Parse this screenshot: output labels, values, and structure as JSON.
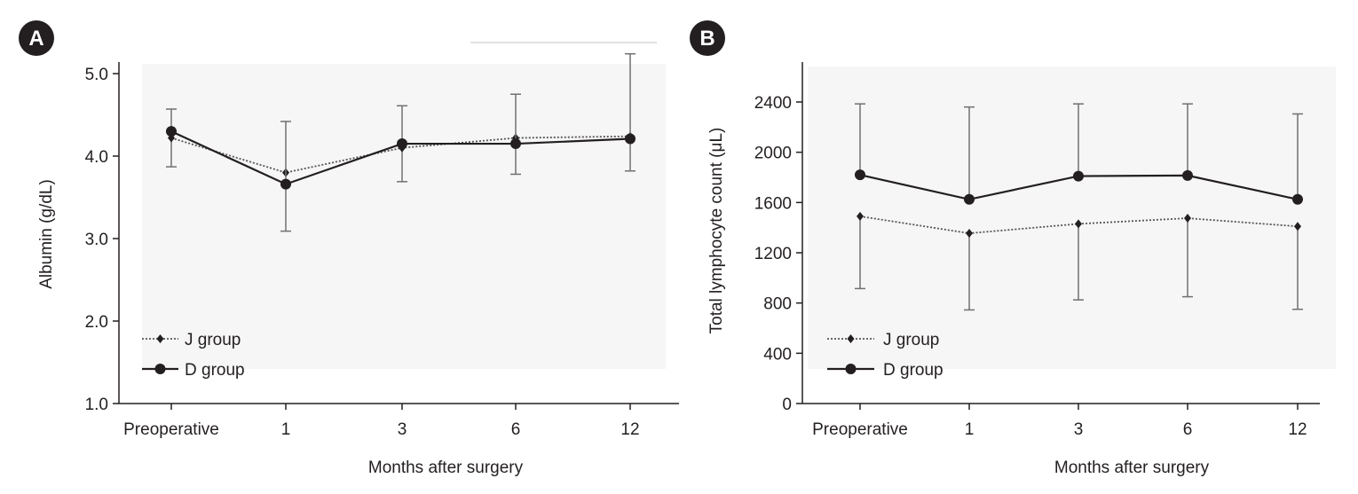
{
  "chart_data": [
    {
      "type": "line",
      "panel_label": "A",
      "categories": [
        "Preoperative",
        "1",
        "3",
        "6",
        "12"
      ],
      "xlabel": "Months after surgery",
      "ylabel": "Albumin (g/dL)",
      "ylim": [
        1.0,
        5.0
      ],
      "yticks": [
        "1.0",
        "2.0",
        "3.0",
        "4.0",
        "5.0"
      ],
      "ytick_values": [
        1.0,
        2.0,
        3.0,
        4.0,
        5.0
      ],
      "legend_position": "bottom-left",
      "series": [
        {
          "name": "J group",
          "style": "dotted",
          "marker": "diamond",
          "values": [
            4.22,
            3.8,
            4.1,
            4.22,
            4.24
          ],
          "error_low": [
            3.87,
            3.8,
            3.69,
            3.78,
            3.82
          ],
          "error_high": [
            4.22,
            3.8,
            4.1,
            4.22,
            4.24
          ]
        },
        {
          "name": "D group",
          "style": "solid",
          "marker": "circle",
          "values": [
            4.3,
            3.66,
            4.15,
            4.15,
            4.21
          ],
          "error_low": [
            4.3,
            3.09,
            4.15,
            4.15,
            4.21
          ],
          "error_high": [
            4.57,
            4.42,
            4.61,
            4.75,
            5.24
          ]
        }
      ]
    },
    {
      "type": "line",
      "panel_label": "B",
      "categories": [
        "Preoperative",
        "1",
        "3",
        "6",
        "12"
      ],
      "xlabel": "Months after surgery",
      "ylabel": "Total lymphocyte count (μL)",
      "ylim": [
        0,
        2800
      ],
      "yticks": [
        "0",
        "400",
        "800",
        "1200",
        "1600",
        "2000",
        "2400"
      ],
      "ytick_values": [
        0,
        400,
        800,
        1200,
        1600,
        2000,
        2400
      ],
      "legend_position": "bottom-left",
      "series": [
        {
          "name": "J group",
          "style": "dotted",
          "marker": "diamond",
          "values": [
            1490,
            1355,
            1430,
            1475,
            1410
          ],
          "error_low": [
            915,
            745,
            825,
            850,
            750
          ],
          "error_high": [
            1490,
            1355,
            1430,
            1475,
            1410
          ]
        },
        {
          "name": "D group",
          "style": "solid",
          "marker": "circle",
          "values": [
            1820,
            1625,
            1810,
            1815,
            1625
          ],
          "error_low": [
            1820,
            1625,
            1810,
            1815,
            1625
          ],
          "error_high": [
            2385,
            2360,
            2385,
            2385,
            2305
          ]
        }
      ]
    }
  ]
}
